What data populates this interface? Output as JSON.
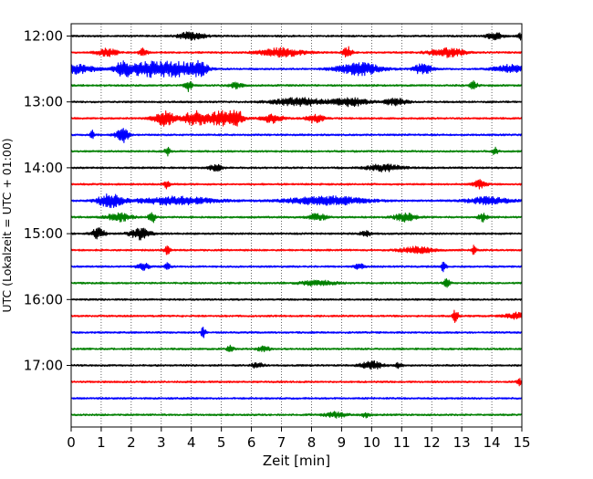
{
  "chart_data": {
    "type": "line",
    "title": "",
    "xlabel": "Zeit  [min]",
    "ylabel": "UTC (Lokalzeit = UTC + 01:00)",
    "xlim": [
      0,
      15
    ],
    "x_ticks": [
      0,
      1,
      2,
      3,
      4,
      5,
      6,
      7,
      8,
      9,
      10,
      11,
      12,
      13,
      14,
      15
    ],
    "x_tick_labels": [
      "0",
      "1",
      "2",
      "3",
      "4",
      "5",
      "6",
      "7",
      "8",
      "9",
      "10",
      "11",
      "12",
      "13",
      "14",
      "15"
    ],
    "y_tick_labels": [
      "12:00",
      "13:00",
      "14:00",
      "15:00",
      "16:00",
      "17:00"
    ],
    "y_tick_rows": [
      0,
      4,
      8,
      12,
      16,
      20
    ],
    "grid": "vertical dotted lines at each minute",
    "minutes_per_row": 15,
    "trace_colors": [
      "#000000",
      "#ff0000",
      "#0000ff",
      "#008000"
    ],
    "series": [
      {
        "start": "12:00",
        "events": [
          {
            "t": 4.0,
            "a": 0.5,
            "w": 0.3
          },
          {
            "t": 14.1,
            "a": 0.4,
            "w": 0.2
          },
          {
            "t": 15.0,
            "a": 0.5,
            "w": 0.08
          }
        ]
      },
      {
        "start": "12:15",
        "events": [
          {
            "t": 1.2,
            "a": 0.5,
            "w": 0.25
          },
          {
            "t": 2.4,
            "a": 0.5,
            "w": 0.1
          },
          {
            "t": 7.0,
            "a": 0.55,
            "w": 0.5
          },
          {
            "t": 9.2,
            "a": 0.7,
            "w": 0.1
          },
          {
            "t": 12.5,
            "a": 0.55,
            "w": 0.4
          }
        ]
      },
      {
        "start": "12:30",
        "events": [
          {
            "t": 0.2,
            "a": 0.55,
            "w": 0.4
          },
          {
            "t": 1.7,
            "a": 1.0,
            "w": 0.15
          },
          {
            "t": 2.6,
            "a": 0.9,
            "w": 0.6
          },
          {
            "t": 3.6,
            "a": 0.7,
            "w": 0.5
          },
          {
            "t": 4.3,
            "a": 0.9,
            "w": 0.15
          },
          {
            "t": 9.6,
            "a": 0.8,
            "w": 0.5
          },
          {
            "t": 11.7,
            "a": 0.7,
            "w": 0.2
          },
          {
            "t": 14.6,
            "a": 0.5,
            "w": 0.35
          }
        ]
      },
      {
        "start": "12:45",
        "events": [
          {
            "t": 3.9,
            "a": 0.7,
            "w": 0.08
          },
          {
            "t": 5.5,
            "a": 0.35,
            "w": 0.15
          },
          {
            "t": 13.4,
            "a": 0.55,
            "w": 0.08
          }
        ]
      },
      {
        "start": "13:00",
        "events": [
          {
            "t": 7.6,
            "a": 0.5,
            "w": 0.6
          },
          {
            "t": 9.3,
            "a": 0.5,
            "w": 0.4
          },
          {
            "t": 10.8,
            "a": 0.45,
            "w": 0.25
          }
        ]
      },
      {
        "start": "13:15",
        "events": [
          {
            "t": 3.1,
            "a": 0.9,
            "w": 0.25
          },
          {
            "t": 4.1,
            "a": 0.9,
            "w": 0.25
          },
          {
            "t": 5.0,
            "a": 0.9,
            "w": 0.35
          },
          {
            "t": 5.5,
            "a": 0.95,
            "w": 0.15
          },
          {
            "t": 6.7,
            "a": 0.55,
            "w": 0.25
          },
          {
            "t": 8.1,
            "a": 0.55,
            "w": 0.2
          }
        ]
      },
      {
        "start": "13:30",
        "events": [
          {
            "t": 0.7,
            "a": 0.5,
            "w": 0.06
          },
          {
            "t": 1.7,
            "a": 1.0,
            "w": 0.15
          }
        ]
      },
      {
        "start": "13:45",
        "events": [
          {
            "t": 3.2,
            "a": 0.6,
            "w": 0.06
          },
          {
            "t": 14.1,
            "a": 0.6,
            "w": 0.06
          }
        ]
      },
      {
        "start": "14:00",
        "events": [
          {
            "t": 4.8,
            "a": 0.4,
            "w": 0.15
          },
          {
            "t": 10.4,
            "a": 0.45,
            "w": 0.4
          }
        ]
      },
      {
        "start": "14:15",
        "events": [
          {
            "t": 3.2,
            "a": 0.7,
            "w": 0.06
          },
          {
            "t": 13.6,
            "a": 0.5,
            "w": 0.15
          }
        ]
      },
      {
        "start": "14:30",
        "events": [
          {
            "t": 1.3,
            "a": 0.8,
            "w": 0.3
          },
          {
            "t": 3.5,
            "a": 0.5,
            "w": 0.9
          },
          {
            "t": 8.5,
            "a": 0.55,
            "w": 0.9
          },
          {
            "t": 13.9,
            "a": 0.45,
            "w": 0.5
          }
        ]
      },
      {
        "start": "14:45",
        "events": [
          {
            "t": 1.6,
            "a": 0.5,
            "w": 0.3
          },
          {
            "t": 2.7,
            "a": 0.8,
            "w": 0.08
          },
          {
            "t": 8.2,
            "a": 0.45,
            "w": 0.2
          },
          {
            "t": 11.1,
            "a": 0.5,
            "w": 0.25
          },
          {
            "t": 13.7,
            "a": 0.5,
            "w": 0.1
          }
        ]
      },
      {
        "start": "15:00",
        "events": [
          {
            "t": 0.9,
            "a": 0.7,
            "w": 0.15
          },
          {
            "t": 2.3,
            "a": 0.7,
            "w": 0.25
          },
          {
            "t": 9.8,
            "a": 0.4,
            "w": 0.12
          }
        ]
      },
      {
        "start": "15:15",
        "events": [
          {
            "t": 3.2,
            "a": 0.6,
            "w": 0.06
          },
          {
            "t": 11.5,
            "a": 0.4,
            "w": 0.4
          },
          {
            "t": 13.4,
            "a": 0.55,
            "w": 0.06
          }
        ]
      },
      {
        "start": "15:30",
        "events": [
          {
            "t": 2.4,
            "a": 0.4,
            "w": 0.15
          },
          {
            "t": 3.2,
            "a": 0.7,
            "w": 0.06
          },
          {
            "t": 9.6,
            "a": 0.4,
            "w": 0.1
          },
          {
            "t": 12.4,
            "a": 0.6,
            "w": 0.06
          }
        ]
      },
      {
        "start": "15:45",
        "events": [
          {
            "t": 8.2,
            "a": 0.3,
            "w": 0.4
          },
          {
            "t": 12.5,
            "a": 0.5,
            "w": 0.08
          }
        ]
      },
      {
        "start": "16:00",
        "events": []
      },
      {
        "start": "16:15",
        "events": [
          {
            "t": 12.8,
            "a": 1.0,
            "w": 0.06
          },
          {
            "t": 14.8,
            "a": 0.4,
            "w": 0.25
          }
        ]
      },
      {
        "start": "16:30",
        "events": [
          {
            "t": 4.4,
            "a": 0.8,
            "w": 0.05
          }
        ]
      },
      {
        "start": "16:45",
        "events": [
          {
            "t": 5.3,
            "a": 0.4,
            "w": 0.08
          },
          {
            "t": 6.4,
            "a": 0.3,
            "w": 0.15
          }
        ]
      },
      {
        "start": "17:00",
        "events": [
          {
            "t": 6.2,
            "a": 0.35,
            "w": 0.15
          },
          {
            "t": 10.0,
            "a": 0.5,
            "w": 0.25
          },
          {
            "t": 10.9,
            "a": 0.4,
            "w": 0.08
          }
        ]
      },
      {
        "start": "17:15",
        "events": [
          {
            "t": 14.9,
            "a": 0.4,
            "w": 0.06
          }
        ]
      },
      {
        "start": "17:30",
        "events": []
      },
      {
        "start": "17:45",
        "events": [
          {
            "t": 8.8,
            "a": 0.35,
            "w": 0.25
          },
          {
            "t": 9.8,
            "a": 0.3,
            "w": 0.1
          }
        ]
      }
    ]
  }
}
